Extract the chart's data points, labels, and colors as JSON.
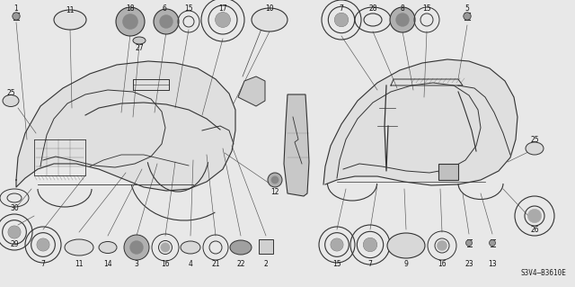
{
  "title": "",
  "diagram_code": "S3V4–B3610E",
  "bg_color": "#f0f0f0",
  "fig_width": 6.4,
  "fig_height": 3.19,
  "dpi": 100
}
